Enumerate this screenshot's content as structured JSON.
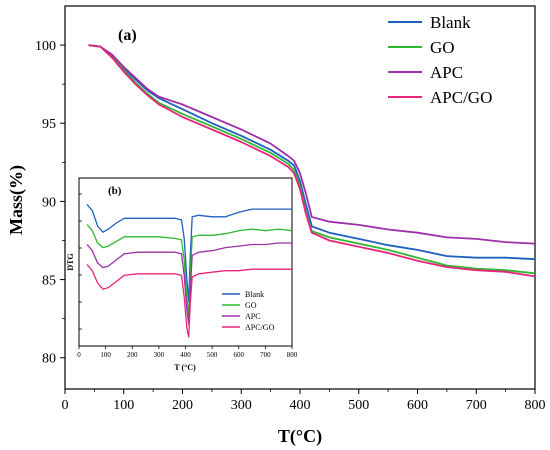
{
  "chart_data": [
    {
      "type": "line",
      "panel_label": "(a)",
      "xlabel": "T(°C)",
      "ylabel": "Mass(%)",
      "xlim": [
        0,
        800
      ],
      "ylim": [
        78,
        102.5
      ],
      "x_ticks": [
        0,
        100,
        200,
        300,
        400,
        500,
        600,
        700,
        800
      ],
      "y_ticks": [
        80,
        85,
        90,
        95,
        100
      ],
      "grid": false,
      "legend_position": "top-right",
      "series": [
        {
          "name": "Blank",
          "color": "#1f5fbf",
          "points": [
            [
              40,
              100.0
            ],
            [
              60,
              99.9
            ],
            [
              80,
              99.3
            ],
            [
              100,
              98.5
            ],
            [
              120,
              97.8
            ],
            [
              140,
              97.1
            ],
            [
              160,
              96.6
            ],
            [
              200,
              95.9
            ],
            [
              250,
              95.0
            ],
            [
              300,
              94.2
            ],
            [
              350,
              93.3
            ],
            [
              380,
              92.6
            ],
            [
              390,
              92.3
            ],
            [
              400,
              91.3
            ],
            [
              410,
              89.8
            ],
            [
              420,
              88.4
            ],
            [
              450,
              88.0
            ],
            [
              500,
              87.6
            ],
            [
              550,
              87.2
            ],
            [
              600,
              86.9
            ],
            [
              650,
              86.5
            ],
            [
              700,
              86.4
            ],
            [
              750,
              86.4
            ],
            [
              800,
              86.3
            ]
          ]
        },
        {
          "name": "GO",
          "color": "#2fb82f",
          "points": [
            [
              40,
              100.0
            ],
            [
              60,
              99.9
            ],
            [
              80,
              99.3
            ],
            [
              100,
              98.4
            ],
            [
              120,
              97.6
            ],
            [
              140,
              96.9
            ],
            [
              160,
              96.3
            ],
            [
              200,
              95.6
            ],
            [
              250,
              94.8
            ],
            [
              300,
              94.0
            ],
            [
              350,
              93.1
            ],
            [
              380,
              92.4
            ],
            [
              390,
              92.0
            ],
            [
              400,
              91.0
            ],
            [
              410,
              89.3
            ],
            [
              420,
              88.1
            ],
            [
              450,
              87.7
            ],
            [
              500,
              87.3
            ],
            [
              550,
              86.9
            ],
            [
              600,
              86.4
            ],
            [
              650,
              85.9
            ],
            [
              700,
              85.7
            ],
            [
              750,
              85.6
            ],
            [
              800,
              85.4
            ]
          ]
        },
        {
          "name": "APC",
          "color": "#9b30a8",
          "points": [
            [
              40,
              100.0
            ],
            [
              60,
              99.9
            ],
            [
              80,
              99.4
            ],
            [
              100,
              98.6
            ],
            [
              120,
              97.9
            ],
            [
              140,
              97.2
            ],
            [
              160,
              96.7
            ],
            [
              200,
              96.2
            ],
            [
              250,
              95.4
            ],
            [
              300,
              94.6
            ],
            [
              350,
              93.7
            ],
            [
              380,
              92.9
            ],
            [
              390,
              92.6
            ],
            [
              400,
              91.8
            ],
            [
              410,
              90.5
            ],
            [
              420,
              89.0
            ],
            [
              450,
              88.7
            ],
            [
              500,
              88.5
            ],
            [
              550,
              88.2
            ],
            [
              600,
              88.0
            ],
            [
              650,
              87.7
            ],
            [
              700,
              87.6
            ],
            [
              750,
              87.4
            ],
            [
              800,
              87.3
            ]
          ]
        },
        {
          "name": "APC/GO",
          "color": "#e8247c",
          "points": [
            [
              40,
              100.0
            ],
            [
              60,
              99.9
            ],
            [
              80,
              99.2
            ],
            [
              100,
              98.3
            ],
            [
              120,
              97.5
            ],
            [
              140,
              96.8
            ],
            [
              160,
              96.2
            ],
            [
              200,
              95.4
            ],
            [
              250,
              94.6
            ],
            [
              300,
              93.8
            ],
            [
              350,
              92.9
            ],
            [
              380,
              92.2
            ],
            [
              390,
              91.8
            ],
            [
              400,
              90.8
            ],
            [
              410,
              89.2
            ],
            [
              420,
              88.0
            ],
            [
              450,
              87.5
            ],
            [
              500,
              87.1
            ],
            [
              550,
              86.7
            ],
            [
              600,
              86.2
            ],
            [
              650,
              85.8
            ],
            [
              700,
              85.6
            ],
            [
              750,
              85.5
            ],
            [
              800,
              85.2
            ]
          ]
        }
      ]
    },
    {
      "type": "line",
      "panel_label": "(b)",
      "inset": true,
      "xlabel": "T (°C)",
      "ylabel": "DTG",
      "xlim": [
        0,
        800
      ],
      "ylim": [
        0,
        1
      ],
      "x_ticks": [
        0,
        100,
        200,
        300,
        400,
        500,
        600,
        700,
        800
      ],
      "y_ticks_labeled": false,
      "grid": false,
      "legend_position": "bottom-right",
      "series": [
        {
          "name": "Blank",
          "color": "#1f5fbf",
          "points": [
            [
              30,
              0.88
            ],
            [
              50,
              0.84
            ],
            [
              70,
              0.74
            ],
            [
              90,
              0.7
            ],
            [
              110,
              0.72
            ],
            [
              140,
              0.76
            ],
            [
              170,
              0.79
            ],
            [
              220,
              0.79
            ],
            [
              300,
              0.79
            ],
            [
              360,
              0.79
            ],
            [
              385,
              0.78
            ],
            [
              395,
              0.66
            ],
            [
              405,
              0.4
            ],
            [
              412,
              0.25
            ],
            [
              418,
              0.55
            ],
            [
              425,
              0.8
            ],
            [
              450,
              0.81
            ],
            [
              500,
              0.8
            ],
            [
              550,
              0.8
            ],
            [
              600,
              0.83
            ],
            [
              650,
              0.85
            ],
            [
              700,
              0.85
            ],
            [
              750,
              0.85
            ],
            [
              800,
              0.85
            ]
          ]
        },
        {
          "name": "GO",
          "color": "#2fb82f",
          "points": [
            [
              30,
              0.75
            ],
            [
              50,
              0.71
            ],
            [
              70,
              0.63
            ],
            [
              90,
              0.6
            ],
            [
              110,
              0.61
            ],
            [
              140,
              0.64
            ],
            [
              170,
              0.67
            ],
            [
              220,
              0.67
            ],
            [
              300,
              0.67
            ],
            [
              360,
              0.66
            ],
            [
              385,
              0.65
            ],
            [
              395,
              0.52
            ],
            [
              405,
              0.28
            ],
            [
              412,
              0.16
            ],
            [
              418,
              0.42
            ],
            [
              425,
              0.67
            ],
            [
              450,
              0.68
            ],
            [
              500,
              0.68
            ],
            [
              550,
              0.69
            ],
            [
              600,
              0.71
            ],
            [
              650,
              0.72
            ],
            [
              700,
              0.71
            ],
            [
              750,
              0.72
            ],
            [
              800,
              0.71
            ]
          ]
        },
        {
          "name": "APC",
          "color": "#9b30a8",
          "points": [
            [
              30,
              0.62
            ],
            [
              50,
              0.58
            ],
            [
              70,
              0.5
            ],
            [
              90,
              0.47
            ],
            [
              110,
              0.48
            ],
            [
              140,
              0.52
            ],
            [
              170,
              0.56
            ],
            [
              220,
              0.57
            ],
            [
              300,
              0.57
            ],
            [
              360,
              0.57
            ],
            [
              385,
              0.56
            ],
            [
              395,
              0.42
            ],
            [
              405,
              0.2
            ],
            [
              412,
              0.1
            ],
            [
              418,
              0.33
            ],
            [
              425,
              0.55
            ],
            [
              450,
              0.57
            ],
            [
              500,
              0.58
            ],
            [
              550,
              0.6
            ],
            [
              600,
              0.61
            ],
            [
              650,
              0.62
            ],
            [
              700,
              0.62
            ],
            [
              750,
              0.63
            ],
            [
              800,
              0.63
            ]
          ]
        },
        {
          "name": "APC/GO",
          "color": "#e8247c",
          "points": [
            [
              30,
              0.49
            ],
            [
              50,
              0.45
            ],
            [
              70,
              0.37
            ],
            [
              90,
              0.33
            ],
            [
              110,
              0.34
            ],
            [
              140,
              0.38
            ],
            [
              170,
              0.42
            ],
            [
              220,
              0.43
            ],
            [
              300,
              0.43
            ],
            [
              360,
              0.43
            ],
            [
              385,
              0.42
            ],
            [
              395,
              0.28
            ],
            [
              405,
              0.08
            ],
            [
              412,
              0.02
            ],
            [
              418,
              0.24
            ],
            [
              425,
              0.41
            ],
            [
              450,
              0.43
            ],
            [
              500,
              0.44
            ],
            [
              550,
              0.45
            ],
            [
              600,
              0.45
            ],
            [
              650,
              0.46
            ],
            [
              700,
              0.46
            ],
            [
              750,
              0.46
            ],
            [
              800,
              0.46
            ]
          ]
        }
      ]
    }
  ]
}
